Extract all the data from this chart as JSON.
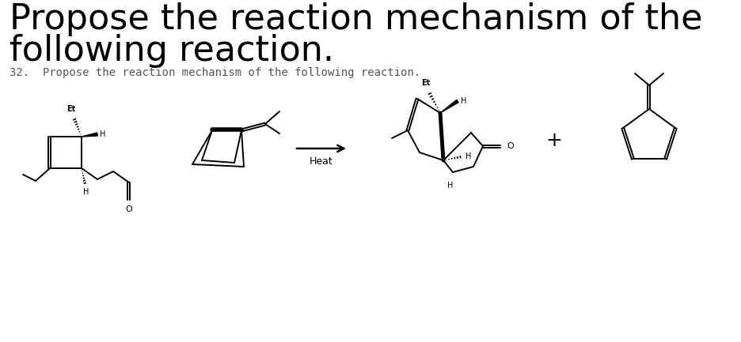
{
  "title_line1": "Propose the reaction mechanism of the",
  "title_line2": "following reaction.",
  "subtitle": "32.  Propose the reaction mechanism of the following reaction.",
  "arrow_label": "Heat",
  "plus_sign": "+",
  "bg_color": "#ffffff",
  "text_color": "#000000",
  "title_fontsize": 32,
  "subtitle_fontsize": 10,
  "arrow_color": "#000000",
  "heat_color": "#000000",
  "line_color": "#000000",
  "line_width": 1.4
}
